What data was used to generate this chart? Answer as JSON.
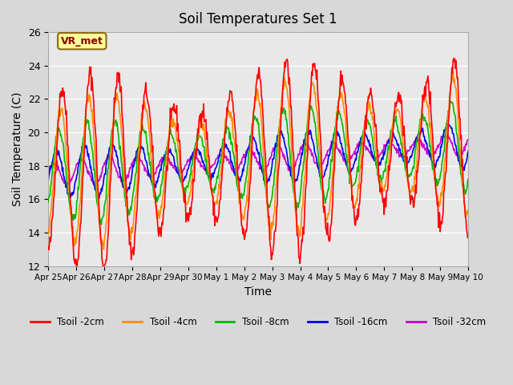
{
  "title": "Soil Temperatures Set 1",
  "xlabel": "Time",
  "ylabel": "Soil Temperature (C)",
  "ylim": [
    12,
    26
  ],
  "yticks": [
    12,
    14,
    16,
    18,
    20,
    22,
    24,
    26
  ],
  "fig_bg_color": "#d8d8d8",
  "ax_bg_color": "#e8e8e8",
  "grid_color": "#ffffff",
  "annotation_text": "VR_met",
  "annotation_color": "#8B0000",
  "annotation_bg": "#FFFF99",
  "annotation_border": "#8B6914",
  "series_colors": {
    "Tsoil -2cm": "#ff0000",
    "Tsoil -4cm": "#ff8c00",
    "Tsoil -8cm": "#00bb00",
    "Tsoil -16cm": "#0000ee",
    "Tsoil -32cm": "#cc00cc"
  },
  "xtick_labels": [
    "Apr 25",
    "Apr 26",
    "Apr 27",
    "Apr 28",
    "Apr 29",
    "Apr 30",
    "May 1",
    "May 2",
    "May 3",
    "May 4",
    "May 5",
    "May 6",
    "May 7",
    "May 8",
    "May 9",
    "May 10"
  ],
  "n_days": 15,
  "seed": 42
}
